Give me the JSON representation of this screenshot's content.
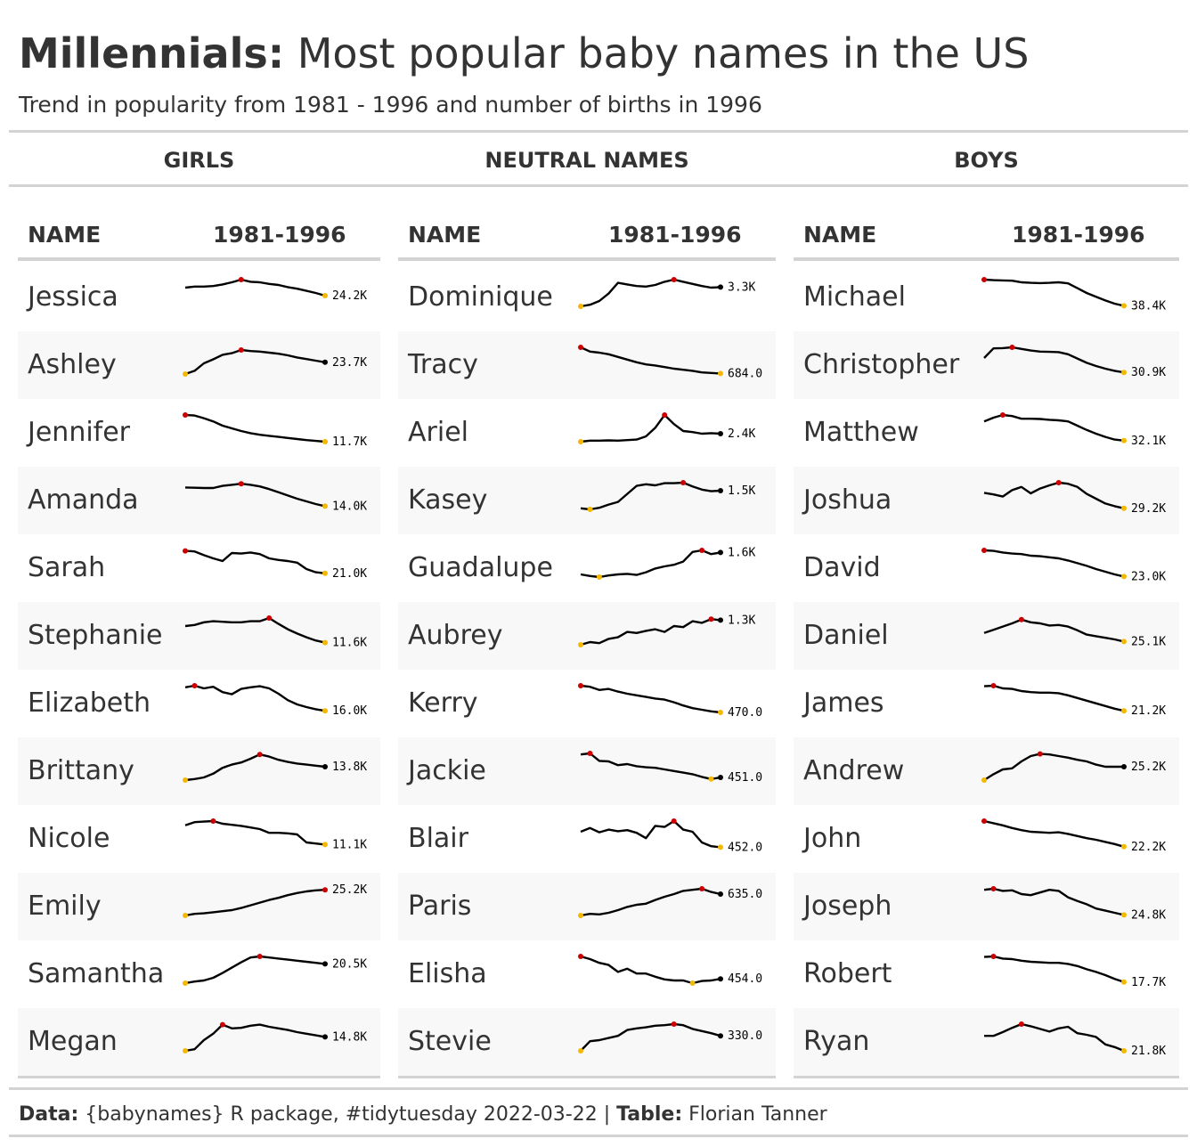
{
  "header": {
    "title_bold": "Millennials:",
    "title_rest": " Most popular baby names in the US",
    "subtitle": "Trend in popularity from 1981 - 1996 and number of births in 1996"
  },
  "caption": {
    "data_label": "Data:",
    "data_text": " {babynames} R package, #tidytuesday 2022-03-22 | ",
    "table_label": "Table:",
    "table_text": " Florian Tanner"
  },
  "colors": {
    "line": "#000000",
    "peak_marker": "#cc0000",
    "low_marker": "#f5b800",
    "end_marker": "#000000",
    "row_alt": "#f8f8f8",
    "rule": "#d3d3d3"
  },
  "chart_data": {
    "type": "table",
    "years": [
      1981,
      1996
    ],
    "column_headers": {
      "name": "NAME",
      "trend": "1981-1996"
    },
    "groups": [
      {
        "label": "GIRLS",
        "rows": [
          {
            "name": "Jessica",
            "births_1996": "24.2K",
            "trend": [
              0.7,
              0.74,
              0.74,
              0.76,
              0.82,
              0.9,
              1.0,
              0.92,
              0.9,
              0.84,
              0.8,
              0.72,
              0.66,
              0.58,
              0.5,
              0.4
            ]
          },
          {
            "name": "Ashley",
            "births_1996": "23.7K",
            "trend": [
              0.0,
              0.12,
              0.4,
              0.55,
              0.72,
              0.78,
              0.9,
              0.86,
              0.84,
              0.8,
              0.76,
              0.7,
              0.62,
              0.56,
              0.5,
              0.44
            ]
          },
          {
            "name": "Jennifer",
            "births_1996": "11.7K",
            "trend": [
              1.0,
              0.98,
              0.88,
              0.76,
              0.6,
              0.5,
              0.4,
              0.32,
              0.26,
              0.22,
              0.18,
              0.14,
              0.1,
              0.06,
              0.03,
              0.0
            ]
          },
          {
            "name": "Amanda",
            "births_1996": "14.0K",
            "trend": [
              0.82,
              0.81,
              0.8,
              0.8,
              0.88,
              0.92,
              0.96,
              0.92,
              0.86,
              0.76,
              0.64,
              0.52,
              0.4,
              0.3,
              0.2,
              0.12
            ]
          },
          {
            "name": "Sarah",
            "births_1996": "21.0K",
            "trend": [
              0.98,
              0.96,
              0.82,
              0.7,
              0.6,
              0.9,
              0.88,
              0.92,
              0.86,
              0.7,
              0.64,
              0.6,
              0.54,
              0.3,
              0.18,
              0.14
            ]
          },
          {
            "name": "Stephanie",
            "births_1996": "11.6K",
            "trend": [
              0.7,
              0.74,
              0.84,
              0.88,
              0.86,
              0.84,
              0.84,
              0.88,
              0.88,
              1.0,
              0.78,
              0.58,
              0.42,
              0.28,
              0.16,
              0.08
            ]
          },
          {
            "name": "Elizabeth",
            "births_1996": "16.0K",
            "trend": [
              0.94,
              1.0,
              0.9,
              0.96,
              0.76,
              0.68,
              0.88,
              0.94,
              0.98,
              0.9,
              0.7,
              0.46,
              0.3,
              0.2,
              0.12,
              0.06
            ]
          },
          {
            "name": "Brittany",
            "births_1996": "13.8K",
            "trend": [
              0.0,
              0.04,
              0.1,
              0.24,
              0.46,
              0.58,
              0.66,
              0.8,
              0.96,
              0.88,
              0.76,
              0.68,
              0.62,
              0.58,
              0.54,
              0.5
            ]
          },
          {
            "name": "Nicole",
            "births_1996": "11.1K",
            "trend": [
              0.84,
              0.96,
              0.98,
              1.0,
              0.9,
              0.86,
              0.82,
              0.76,
              0.7,
              0.56,
              0.56,
              0.54,
              0.5,
              0.2,
              0.16,
              0.12
            ]
          },
          {
            "name": "Emily",
            "births_1996": "25.2K",
            "trend": [
              0.0,
              0.06,
              0.08,
              0.12,
              0.16,
              0.2,
              0.28,
              0.38,
              0.48,
              0.58,
              0.66,
              0.76,
              0.84,
              0.9,
              0.94,
              0.96
            ]
          },
          {
            "name": "Samantha",
            "births_1996": "20.5K",
            "trend": [
              0.0,
              0.06,
              0.1,
              0.2,
              0.38,
              0.58,
              0.78,
              0.96,
              1.0,
              0.96,
              0.92,
              0.88,
              0.84,
              0.8,
              0.76,
              0.72
            ]
          },
          {
            "name": "Megan",
            "births_1996": "14.8K",
            "trend": [
              0.0,
              0.06,
              0.4,
              0.64,
              0.98,
              0.84,
              0.86,
              0.94,
              0.98,
              0.9,
              0.84,
              0.78,
              0.7,
              0.64,
              0.58,
              0.52
            ]
          }
        ]
      },
      {
        "label": "NEUTRAL NAMES",
        "rows": [
          {
            "name": "Dominique",
            "births_1996": "3.3K",
            "trend": [
              0.0,
              0.06,
              0.2,
              0.48,
              0.88,
              0.82,
              0.76,
              0.74,
              0.8,
              0.92,
              1.0,
              0.92,
              0.84,
              0.76,
              0.7,
              0.72
            ]
          },
          {
            "name": "Tracy",
            "births_1996": "684.0",
            "trend": [
              1.0,
              0.84,
              0.8,
              0.74,
              0.64,
              0.54,
              0.44,
              0.36,
              0.32,
              0.26,
              0.2,
              0.16,
              0.12,
              0.06,
              0.04,
              0.02
            ]
          },
          {
            "name": "Ariel",
            "births_1996": "2.4K",
            "trend": [
              0.0,
              0.04,
              0.04,
              0.05,
              0.04,
              0.06,
              0.08,
              0.2,
              0.52,
              1.0,
              0.66,
              0.4,
              0.36,
              0.3,
              0.32,
              0.3
            ]
          },
          {
            "name": "Kasey",
            "births_1996": "1.5K",
            "trend": [
              0.04,
              0.0,
              0.06,
              0.18,
              0.28,
              0.58,
              0.88,
              0.94,
              0.9,
              0.98,
              0.98,
              1.0,
              0.86,
              0.74,
              0.68,
              0.7
            ]
          },
          {
            "name": "Guadalupe",
            "births_1996": "1.6K",
            "trend": [
              0.1,
              0.04,
              0.0,
              0.06,
              0.1,
              0.12,
              0.08,
              0.18,
              0.32,
              0.4,
              0.46,
              0.58,
              0.94,
              1.0,
              0.86,
              0.92
            ]
          },
          {
            "name": "Aubrey",
            "births_1996": "1.3K",
            "trend": [
              0.0,
              0.1,
              0.06,
              0.22,
              0.28,
              0.48,
              0.44,
              0.52,
              0.58,
              0.48,
              0.7,
              0.66,
              0.88,
              0.82,
              0.96,
              0.92
            ]
          },
          {
            "name": "Kerry",
            "births_1996": "470.0",
            "trend": [
              1.0,
              0.96,
              0.84,
              0.88,
              0.78,
              0.7,
              0.64,
              0.58,
              0.52,
              0.48,
              0.38,
              0.26,
              0.16,
              0.1,
              0.04,
              0.0
            ]
          },
          {
            "name": "Jackie",
            "births_1996": "451.0",
            "trend": [
              0.96,
              1.0,
              0.72,
              0.7,
              0.56,
              0.6,
              0.52,
              0.48,
              0.46,
              0.4,
              0.34,
              0.28,
              0.22,
              0.12,
              0.04,
              0.1
            ]
          },
          {
            "name": "Blair",
            "births_1996": "452.0",
            "trend": [
              0.6,
              0.74,
              0.58,
              0.68,
              0.62,
              0.66,
              0.56,
              0.36,
              0.82,
              0.78,
              1.0,
              0.68,
              0.6,
              0.2,
              0.06,
              0.02
            ]
          },
          {
            "name": "Paris",
            "births_1996": "635.0",
            "trend": [
              0.0,
              0.06,
              0.04,
              0.1,
              0.2,
              0.32,
              0.4,
              0.44,
              0.58,
              0.7,
              0.8,
              0.92,
              0.96,
              1.0,
              0.88,
              0.8
            ]
          },
          {
            "name": "Elisha",
            "births_1996": "454.0",
            "trend": [
              1.0,
              0.9,
              0.76,
              0.68,
              0.42,
              0.54,
              0.36,
              0.36,
              0.24,
              0.14,
              0.1,
              0.1,
              0.0,
              0.08,
              0.1,
              0.16
            ]
          },
          {
            "name": "Stevie",
            "births_1996": "330.0",
            "trend": [
              0.0,
              0.36,
              0.4,
              0.48,
              0.56,
              0.78,
              0.84,
              0.88,
              0.94,
              0.96,
              1.0,
              0.96,
              0.82,
              0.74,
              0.66,
              0.56
            ]
          }
        ]
      },
      {
        "label": "BOYS",
        "rows": [
          {
            "name": "Michael",
            "births_1996": "38.4K",
            "trend": [
              1.0,
              0.98,
              0.97,
              0.96,
              0.9,
              0.88,
              0.87,
              0.88,
              0.9,
              0.86,
              0.68,
              0.5,
              0.36,
              0.22,
              0.1,
              0.02
            ]
          },
          {
            "name": "Christopher",
            "births_1996": "30.9K",
            "trend": [
              0.6,
              0.96,
              0.97,
              1.0,
              0.94,
              0.88,
              0.84,
              0.83,
              0.82,
              0.74,
              0.58,
              0.42,
              0.3,
              0.2,
              0.12,
              0.06
            ]
          },
          {
            "name": "Matthew",
            "births_1996": "32.1K",
            "trend": [
              0.76,
              0.9,
              1.0,
              0.96,
              0.86,
              0.86,
              0.85,
              0.82,
              0.8,
              0.76,
              0.6,
              0.44,
              0.3,
              0.18,
              0.08,
              0.04
            ]
          },
          {
            "name": "Joshua",
            "births_1996": "29.2K",
            "trend": [
              0.62,
              0.56,
              0.48,
              0.72,
              0.84,
              0.6,
              0.78,
              0.9,
              1.0,
              0.96,
              0.84,
              0.58,
              0.4,
              0.22,
              0.12,
              0.04
            ]
          },
          {
            "name": "David",
            "births_1996": "23.0K",
            "trend": [
              1.0,
              0.98,
              0.92,
              0.88,
              0.86,
              0.8,
              0.78,
              0.74,
              0.7,
              0.62,
              0.52,
              0.42,
              0.3,
              0.2,
              0.1,
              0.02
            ]
          },
          {
            "name": "Daniel",
            "births_1996": "25.1K",
            "trend": [
              0.44,
              0.56,
              0.68,
              0.8,
              0.94,
              0.84,
              0.8,
              0.72,
              0.74,
              0.68,
              0.54,
              0.38,
              0.32,
              0.26,
              0.2,
              0.12
            ]
          },
          {
            "name": "James",
            "births_1996": "21.2K",
            "trend": [
              0.98,
              1.0,
              0.9,
              0.88,
              0.8,
              0.76,
              0.74,
              0.74,
              0.72,
              0.64,
              0.54,
              0.44,
              0.34,
              0.24,
              0.14,
              0.06
            ]
          },
          {
            "name": "Andrew",
            "births_1996": "25.2K",
            "trend": [
              0.0,
              0.22,
              0.4,
              0.44,
              0.7,
              0.9,
              0.98,
              0.96,
              0.9,
              0.84,
              0.76,
              0.7,
              0.58,
              0.5,
              0.5,
              0.5
            ]
          },
          {
            "name": "John",
            "births_1996": "22.2K",
            "trend": [
              1.0,
              0.92,
              0.84,
              0.74,
              0.66,
              0.6,
              0.58,
              0.56,
              0.58,
              0.52,
              0.44,
              0.36,
              0.3,
              0.22,
              0.14,
              0.04
            ]
          },
          {
            "name": "Joseph",
            "births_1996": "24.8K",
            "trend": [
              0.96,
              1.0,
              0.92,
              0.94,
              0.8,
              0.76,
              0.86,
              0.96,
              0.92,
              0.68,
              0.54,
              0.42,
              0.26,
              0.18,
              0.1,
              0.02
            ]
          },
          {
            "name": "Robert",
            "births_1996": "17.7K",
            "trend": [
              0.98,
              1.0,
              0.92,
              0.9,
              0.84,
              0.8,
              0.78,
              0.76,
              0.76,
              0.72,
              0.64,
              0.52,
              0.42,
              0.3,
              0.16,
              0.04
            ]
          },
          {
            "name": "Ryan",
            "births_1996": "21.8K",
            "trend": [
              0.56,
              0.56,
              0.7,
              0.86,
              1.0,
              0.92,
              0.82,
              0.72,
              0.84,
              0.9,
              0.66,
              0.6,
              0.52,
              0.24,
              0.14,
              0.0
            ]
          }
        ]
      }
    ]
  }
}
